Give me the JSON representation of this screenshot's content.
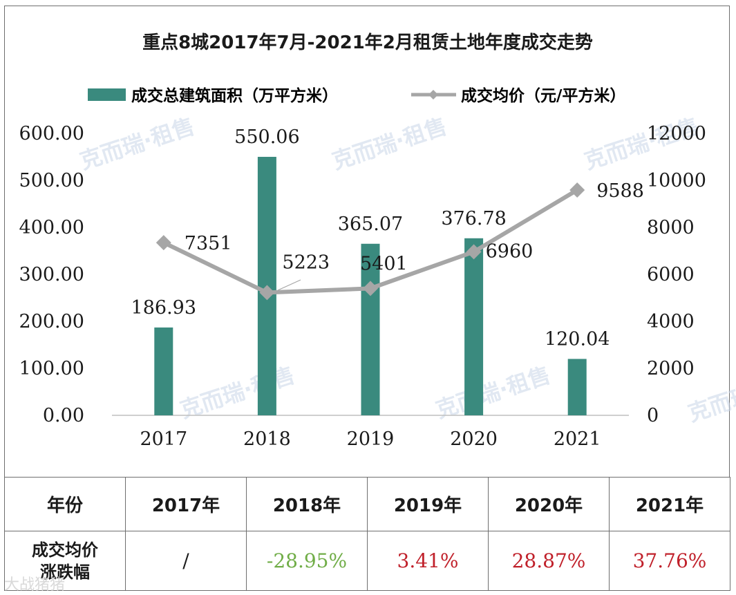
{
  "chart_data": {
    "type": "bar+line",
    "title": "重点8城2017年7月-2021年2月租赁土地年度成交走势",
    "categories": [
      "2017",
      "2018",
      "2019",
      "2020",
      "2021"
    ],
    "series": [
      {
        "name": "成交总建筑面积（万平方米）",
        "type": "bar",
        "axis": "left",
        "values": [
          186.93,
          550.06,
          365.07,
          376.78,
          120.04
        ],
        "labels": [
          "186.93",
          "550.06",
          "365.07",
          "376.78",
          "120.04"
        ]
      },
      {
        "name": "成交均价（元/平方米）",
        "type": "line",
        "axis": "right",
        "values": [
          7351,
          5223,
          5401,
          6960,
          9588
        ],
        "labels": [
          "7351",
          "5223",
          "5401",
          "6960",
          "9588"
        ]
      }
    ],
    "y_left": {
      "min": 0,
      "max": 600,
      "ticks": [
        "0.00",
        "100.00",
        "200.00",
        "300.00",
        "400.00",
        "500.00",
        "600.00"
      ]
    },
    "y_right": {
      "min": 0,
      "max": 12000,
      "ticks": [
        "0",
        "2000",
        "4000",
        "6000",
        "8000",
        "10000",
        "12000"
      ]
    },
    "legend_position": "top",
    "grid": false
  },
  "colors": {
    "bar": "#3a8a7e",
    "line": "#a6a6a6",
    "negative": "#70ad47",
    "positive": "#c0202a"
  },
  "watermark": "克而瑞·租售",
  "table": {
    "header_label": "年份",
    "years": [
      "2017年",
      "2018年",
      "2019年",
      "2020年",
      "2021年"
    ],
    "row_label_line1": "成交均价",
    "row_label_line2": "涨跌幅",
    "changes": [
      "/",
      "-28.95%",
      "3.41%",
      "28.87%",
      "37.76%"
    ]
  },
  "footer_watermark": "大战猪猪"
}
